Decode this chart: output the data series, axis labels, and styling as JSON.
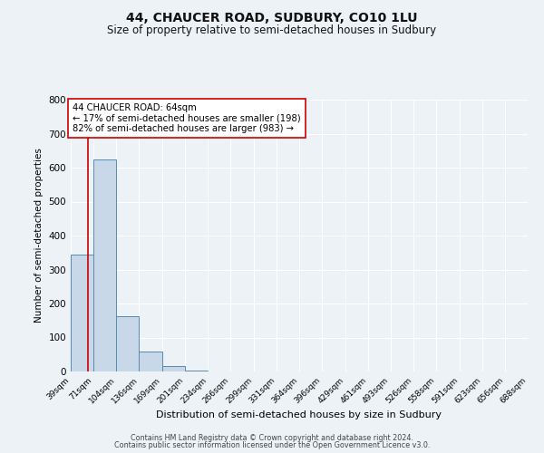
{
  "title": "44, CHAUCER ROAD, SUDBURY, CO10 1LU",
  "subtitle": "Size of property relative to semi-detached houses in Sudbury",
  "xlabel": "Distribution of semi-detached houses by size in Sudbury",
  "ylabel": "Number of semi-detached properties",
  "bin_edges": [
    39,
    71,
    104,
    136,
    169,
    201,
    234,
    266,
    299,
    331,
    364,
    396,
    429,
    461,
    493,
    526,
    558,
    591,
    623,
    656,
    688
  ],
  "bin_counts": [
    343,
    623,
    163,
    60,
    15,
    3,
    0,
    0,
    0,
    0,
    0,
    0,
    0,
    0,
    0,
    0,
    0,
    0,
    0,
    0
  ],
  "bar_color": "#c8d8e8",
  "bar_edge_color": "#5a8ab0",
  "property_size": 64,
  "property_line_color": "#cc0000",
  "annotation_line1": "44 CHAUCER ROAD: 64sqm",
  "annotation_line2": "← 17% of semi-detached houses are smaller (198)",
  "annotation_line3": "82% of semi-detached houses are larger (983) →",
  "annotation_box_color": "#ffffff",
  "annotation_box_edge": "#cc0000",
  "ylim": [
    0,
    800
  ],
  "yticks": [
    0,
    100,
    200,
    300,
    400,
    500,
    600,
    700,
    800
  ],
  "tick_labels": [
    "39sqm",
    "71sqm",
    "104sqm",
    "136sqm",
    "169sqm",
    "201sqm",
    "234sqm",
    "266sqm",
    "299sqm",
    "331sqm",
    "364sqm",
    "396sqm",
    "429sqm",
    "461sqm",
    "493sqm",
    "526sqm",
    "558sqm",
    "591sqm",
    "623sqm",
    "656sqm",
    "688sqm"
  ],
  "footer_line1": "Contains HM Land Registry data © Crown copyright and database right 2024.",
  "footer_line2": "Contains public sector information licensed under the Open Government Licence v3.0.",
  "bg_color": "#edf2f7",
  "plot_bg_color": "#edf2f7",
  "grid_color": "#ffffff",
  "title_fontsize": 10,
  "subtitle_fontsize": 8.5,
  "xlabel_fontsize": 8,
  "ylabel_fontsize": 7.5
}
